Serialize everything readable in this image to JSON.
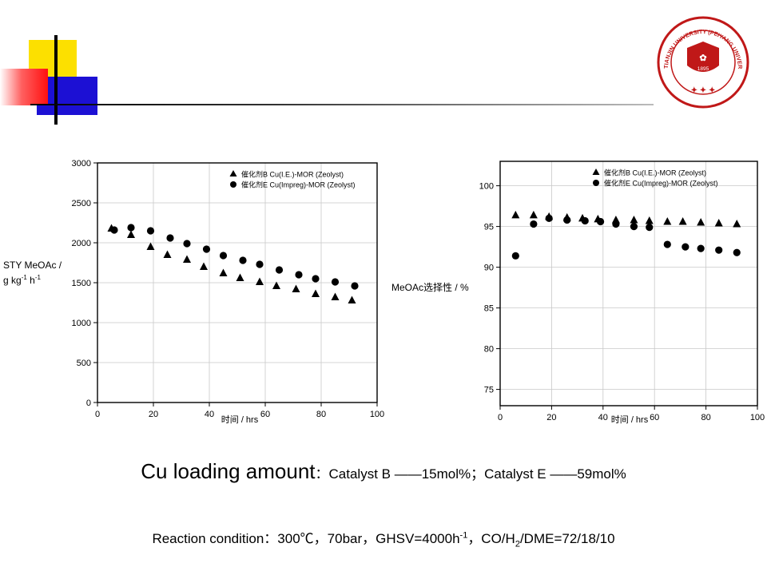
{
  "logo": {
    "university": "TIANJIN UNIVERSITY (PEIYANG UNIVERSITY)",
    "year": "1895"
  },
  "captions": {
    "loading_main": "Cu loading amount",
    "loading_detail": "：Catalyst B ——15mol%；Catalyst E ——59mol%",
    "reaction_prefix": "Reaction condition：300℃，70bar，GHSV=4000h",
    "reaction_sup": "-1",
    "reaction_mid": "，CO/H",
    "reaction_sub": "2",
    "reaction_suffix": "/DME=72/18/10"
  },
  "chart_data": [
    {
      "type": "scatter",
      "ylabel_line1": "STY MeOAc /",
      "ylabel_line2": "g kg",
      "ylabel_sup1": "-1",
      "ylabel_mid": " h",
      "ylabel_sup2": "-1",
      "xlabel": "时间 / hrs",
      "xlim": [
        0,
        100
      ],
      "ylim": [
        0,
        3000
      ],
      "xticks": [
        0,
        20,
        40,
        60,
        80,
        100
      ],
      "yticks": [
        0,
        500,
        1000,
        1500,
        2000,
        2500,
        3000
      ],
      "grid": true,
      "legend_position": "top-right",
      "series": [
        {
          "name": "催化剂B Cu(I.E.)-MOR (Zeolyst)",
          "marker": "triangle",
          "x": [
            5,
            12,
            19,
            25,
            32,
            38,
            45,
            51,
            58,
            64,
            71,
            78,
            85,
            91
          ],
          "y": [
            2180,
            2100,
            1950,
            1850,
            1790,
            1700,
            1620,
            1560,
            1510,
            1460,
            1420,
            1360,
            1320,
            1280
          ]
        },
        {
          "name": "催化剂E Cu(Impreg)-MOR (Zeolyst)",
          "marker": "circle",
          "x": [
            6,
            12,
            19,
            26,
            32,
            39,
            45,
            52,
            58,
            65,
            72,
            78,
            85,
            92
          ],
          "y": [
            2160,
            2190,
            2150,
            2060,
            1990,
            1920,
            1840,
            1780,
            1730,
            1660,
            1600,
            1550,
            1510,
            1460
          ]
        }
      ]
    },
    {
      "type": "scatter",
      "ylabel": "MeOAc选择性 / %",
      "xlabel": "时间 / hrs",
      "xlim": [
        0,
        100
      ],
      "ylim": [
        73,
        103
      ],
      "xticks": [
        0,
        20,
        40,
        60,
        80,
        100
      ],
      "yticks": [
        75,
        80,
        85,
        90,
        95,
        100
      ],
      "grid": true,
      "legend_position": "top-right",
      "series": [
        {
          "name": "催化剂B Cu(I.E.)-MOR (Zeolyst)",
          "marker": "triangle",
          "x": [
            6,
            13,
            19,
            26,
            32,
            38,
            45,
            52,
            58,
            65,
            71,
            78,
            85,
            92
          ],
          "y": [
            96.4,
            96.4,
            96.2,
            96.1,
            96.0,
            95.9,
            95.8,
            95.8,
            95.7,
            95.6,
            95.6,
            95.5,
            95.4,
            95.3
          ]
        },
        {
          "name": "催化剂E Cu(Impreg)-MOR (Zeolyst)",
          "marker": "circle",
          "x": [
            6,
            13,
            19,
            26,
            33,
            39,
            45,
            52,
            58,
            65,
            72,
            78,
            85,
            92
          ],
          "y": [
            91.4,
            95.3,
            96.0,
            95.8,
            95.7,
            95.6,
            95.3,
            95.0,
            94.9,
            92.8,
            92.5,
            92.3,
            92.1,
            91.8
          ]
        }
      ]
    }
  ]
}
